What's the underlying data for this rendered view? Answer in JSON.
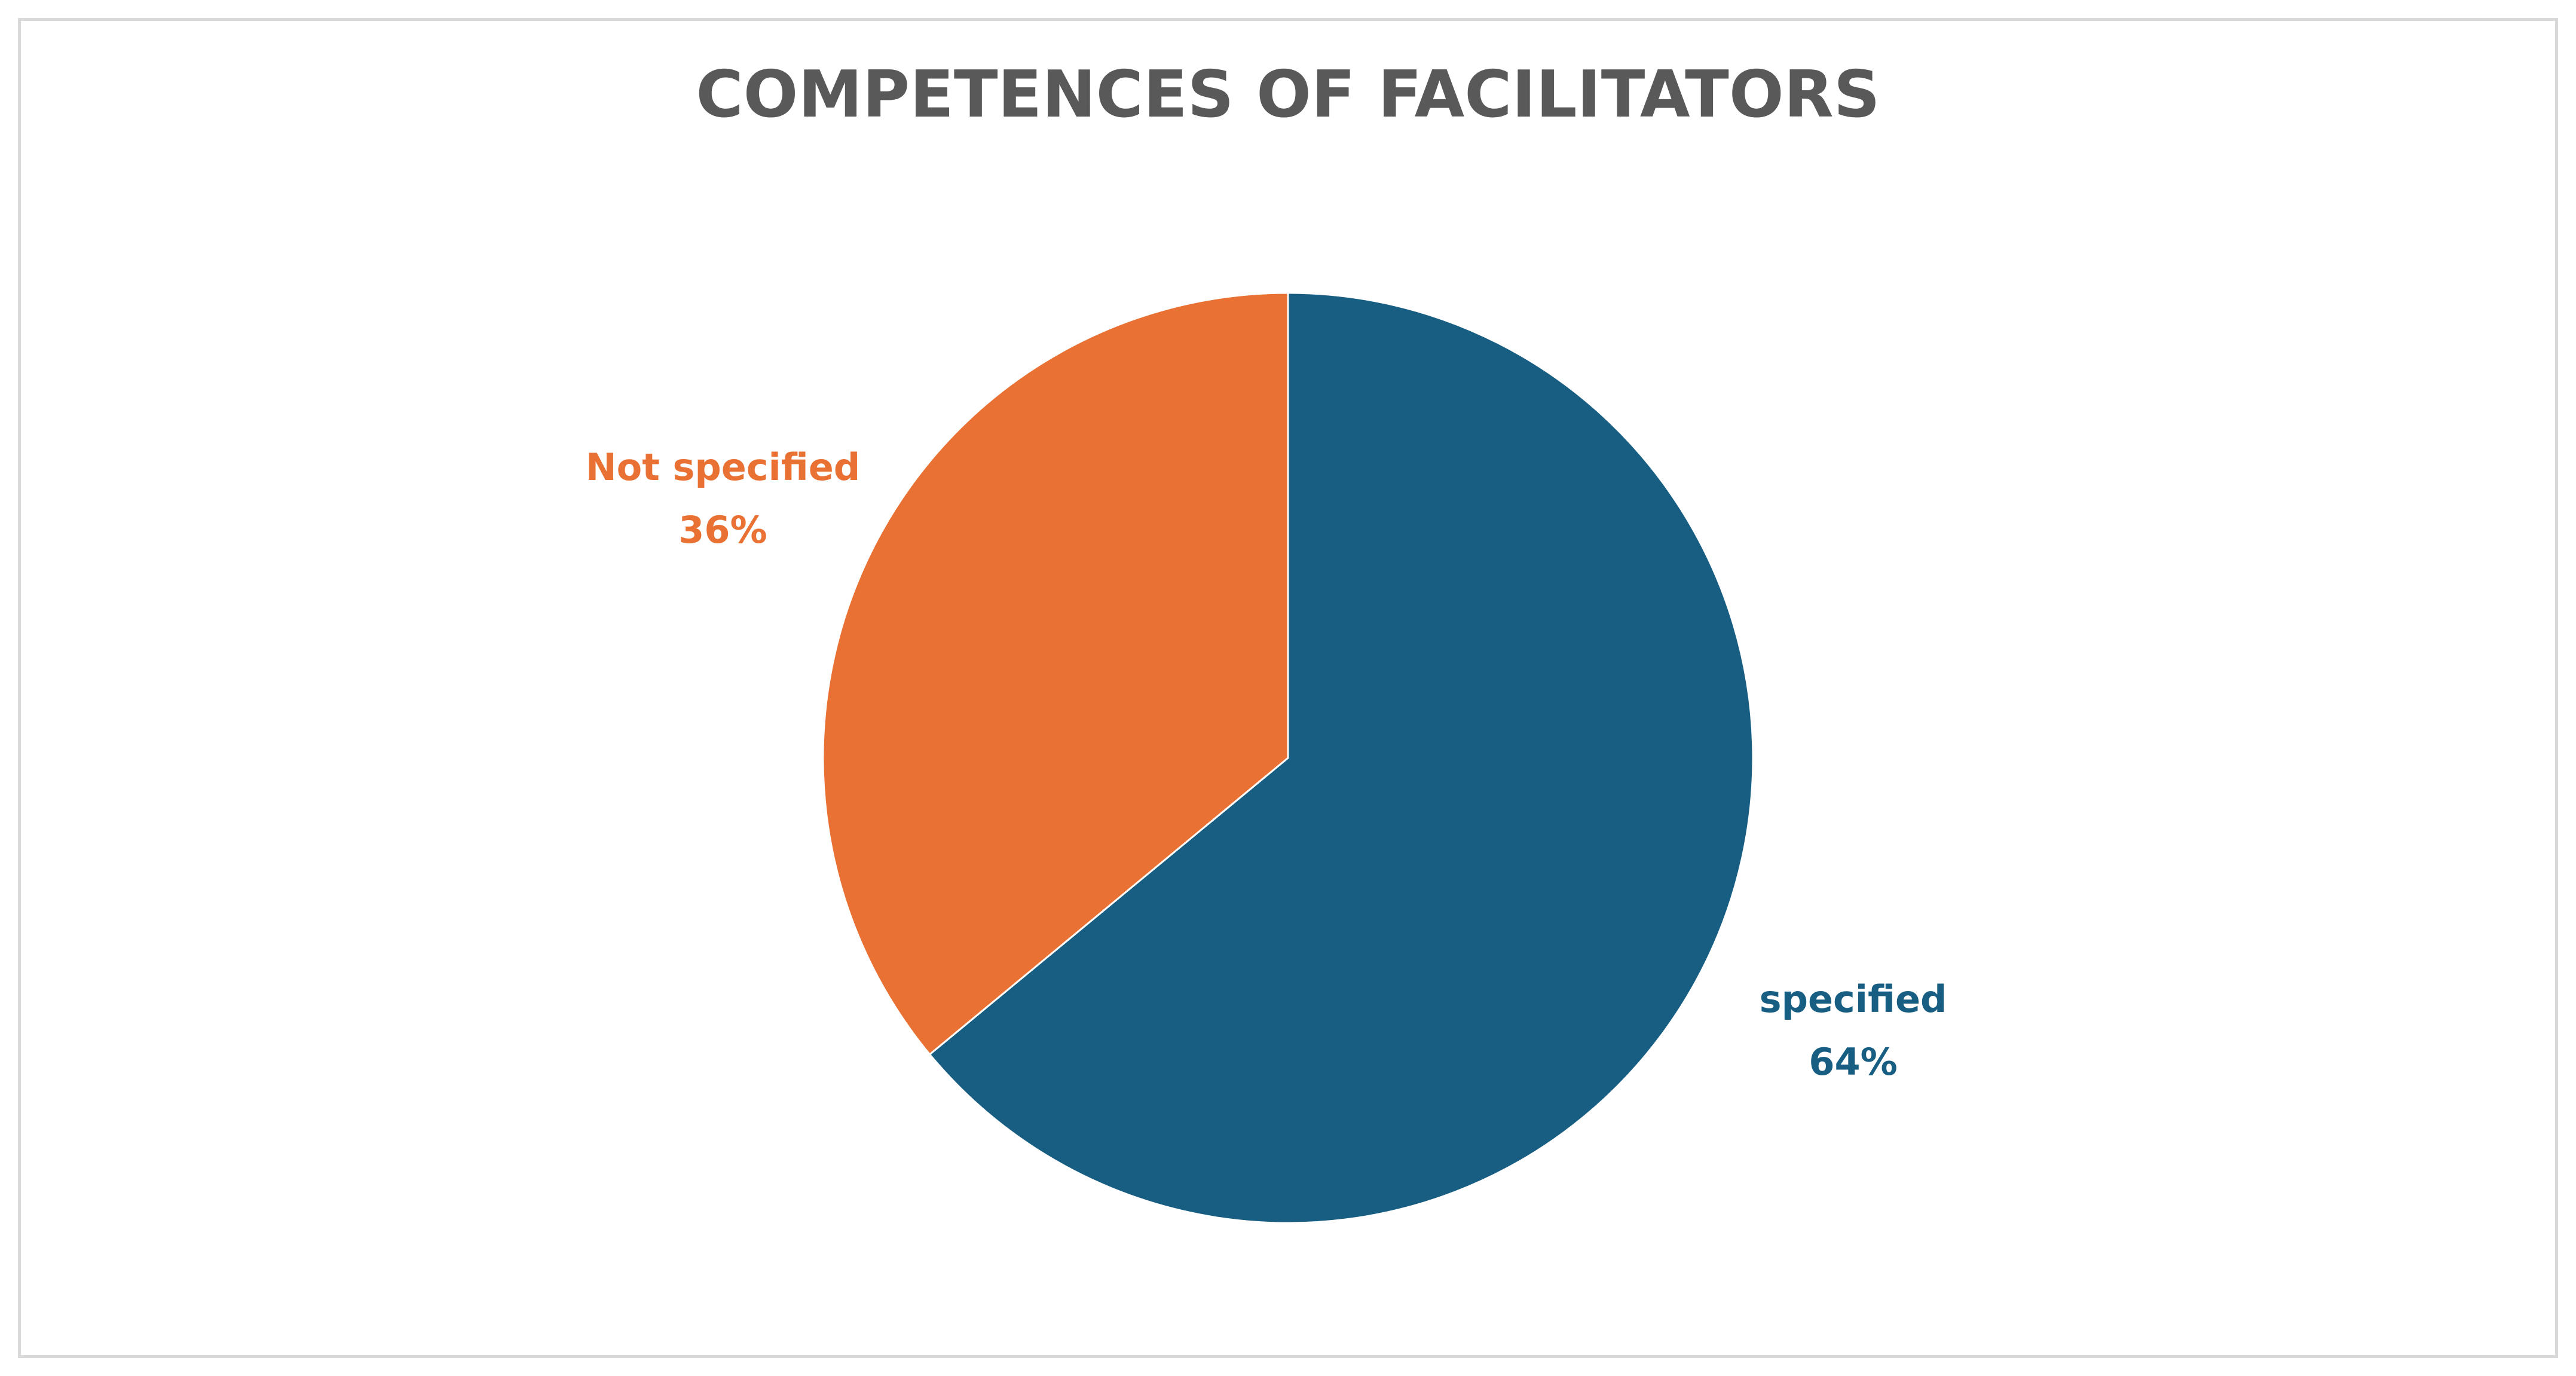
{
  "chart_data": {
    "type": "pie",
    "title": "COMPETENCES OF FACILITATORS",
    "slices": [
      {
        "label": "specified",
        "value": 64,
        "percent_label": "64%",
        "color": "#175E82"
      },
      {
        "label": "Not specified",
        "value": 36,
        "percent_label": "36%",
        "color": "#E87133"
      }
    ],
    "start_angle_deg": 0,
    "direction": "clockwise",
    "legend": "none",
    "data_labels": "outside"
  }
}
